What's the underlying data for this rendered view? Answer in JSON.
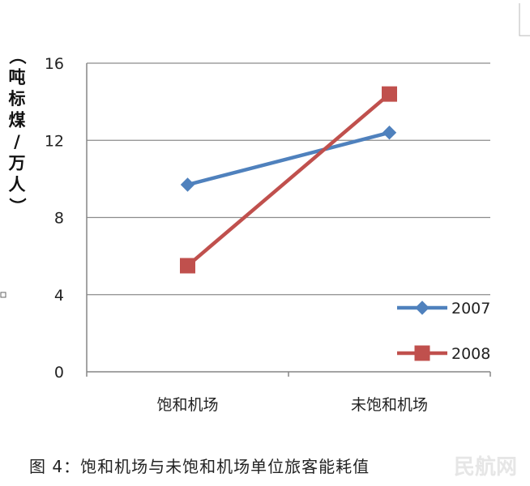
{
  "figure": {
    "caption": "图 4：饱和机场与未饱和机场单位旅客能耗值",
    "watermark": "民航网"
  },
  "chart_data": {
    "type": "line",
    "categories": [
      "饱和机场",
      "未饱和机场"
    ],
    "series": [
      {
        "name": "2007",
        "values": [
          9.7,
          12.4
        ],
        "color": "#4f81bd",
        "marker": "diamond"
      },
      {
        "name": "2008",
        "values": [
          5.5,
          14.4
        ],
        "color": "#c0504d",
        "marker": "square"
      }
    ],
    "title": "",
    "xlabel": "",
    "ylabel": "（吨标煤/万人）",
    "ylim": [
      0,
      16
    ],
    "yticks": [
      0,
      4,
      8,
      12,
      16
    ],
    "grid": "horizontal",
    "legend_position": "bottom-right"
  }
}
